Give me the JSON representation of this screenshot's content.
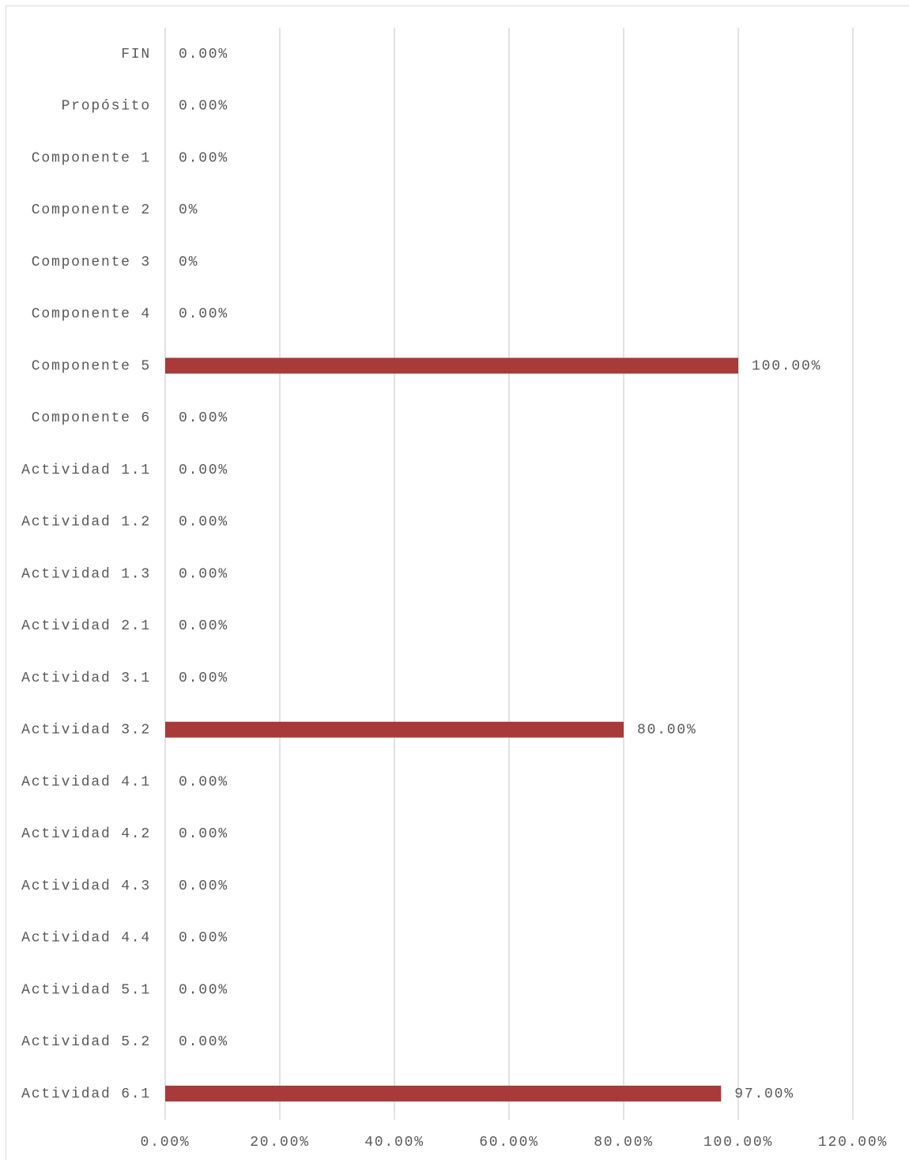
{
  "chart_data": {
    "type": "bar",
    "orientation": "horizontal",
    "categories": [
      "FIN",
      "Propósito",
      "Componente 1",
      "Componente 2",
      "Componente 3",
      "Componente 4",
      "Componente 5",
      "Componente 6",
      "Actividad 1.1",
      "Actividad 1.2",
      "Actividad 1.3",
      "Actividad 2.1",
      "Actividad 3.1",
      "Actividad 3.2",
      "Actividad 4.1",
      "Actividad 4.2",
      "Actividad 4.3",
      "Actividad 4.4",
      "Actividad 5.1",
      "Actividad 5.2",
      "Actividad 6.1"
    ],
    "values": [
      0,
      0,
      0,
      0,
      0,
      0,
      100,
      0,
      0,
      0,
      0,
      0,
      0,
      80,
      0,
      0,
      0,
      0,
      0,
      0,
      97
    ],
    "value_labels": [
      "0.00%",
      "0.00%",
      "0.00%",
      "0%",
      "0%",
      "0.00%",
      "100.00%",
      "0.00%",
      "0.00%",
      "0.00%",
      "0.00%",
      "0.00%",
      "0.00%",
      "80.00%",
      "0.00%",
      "0.00%",
      "0.00%",
      "0.00%",
      "0.00%",
      "0.00%",
      "97.00%"
    ],
    "color": "#a83a3a",
    "xlim": [
      0,
      120
    ],
    "xticks": [
      {
        "value": 0,
        "label": "0.00%"
      },
      {
        "value": 20,
        "label": "20.00%"
      },
      {
        "value": 40,
        "label": "40.00%"
      },
      {
        "value": 60,
        "label": "60.00%"
      },
      {
        "value": 80,
        "label": "80.00%"
      },
      {
        "value": 100,
        "label": "100.00%"
      },
      {
        "value": 120,
        "label": "120.00%"
      }
    ],
    "grid": true
  }
}
